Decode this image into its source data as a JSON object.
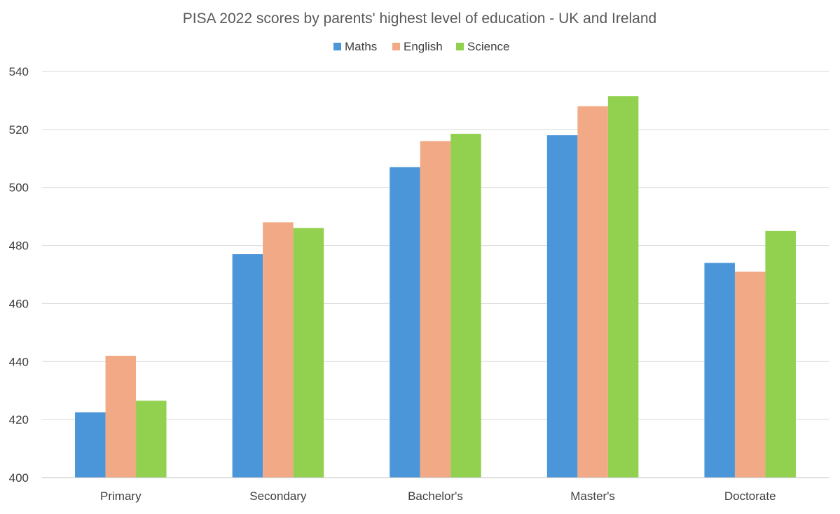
{
  "chart_data": {
    "type": "bar",
    "title": "PISA 2022 scores by parents' highest level of education - UK and Ireland",
    "xlabel": "",
    "ylabel": "",
    "ylim": [
      400,
      540
    ],
    "yticks": [
      400,
      420,
      440,
      460,
      480,
      500,
      520,
      540
    ],
    "grid": true,
    "legend_position": "top",
    "categories": [
      "Primary",
      "Secondary",
      "Bachelor's",
      "Master's",
      "Doctorate"
    ],
    "series": [
      {
        "name": "Maths",
        "color": "#4a96d9",
        "values": [
          422.5,
          477,
          507,
          518,
          474
        ]
      },
      {
        "name": "English",
        "color": "#f2a985",
        "values": [
          442,
          488,
          516,
          528,
          471
        ]
      },
      {
        "name": "Science",
        "color": "#92d050",
        "values": [
          426.5,
          486,
          518.5,
          531.5,
          485
        ]
      }
    ]
  }
}
